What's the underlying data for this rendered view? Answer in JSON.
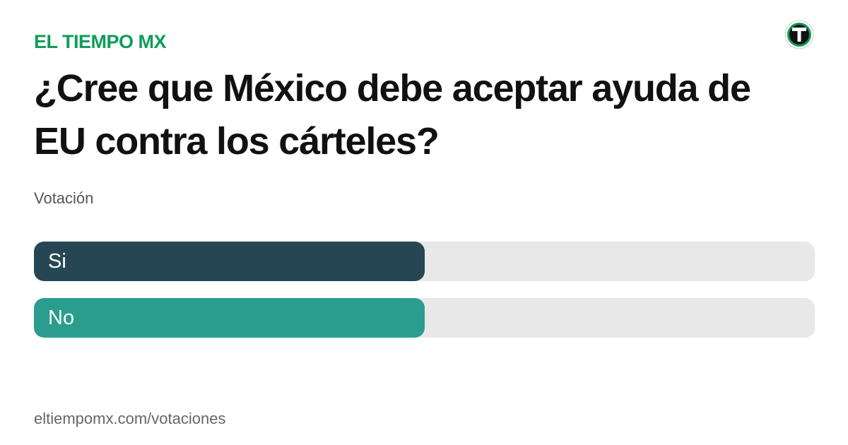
{
  "brand": "EL TIEMPO MX",
  "url": "eltiempomx.com/votaciones",
  "chart_data": {
    "type": "bar",
    "orientation": "horizontal",
    "title": "¿Cree que México debe aceptar ayuda de EU contra los cárteles?",
    "subtitle": "Votación",
    "categories": [
      "Si",
      "No"
    ],
    "values": [
      50,
      50
    ],
    "colors": [
      "#264653",
      "#2a9d8f"
    ],
    "xlim": [
      0,
      100
    ]
  }
}
